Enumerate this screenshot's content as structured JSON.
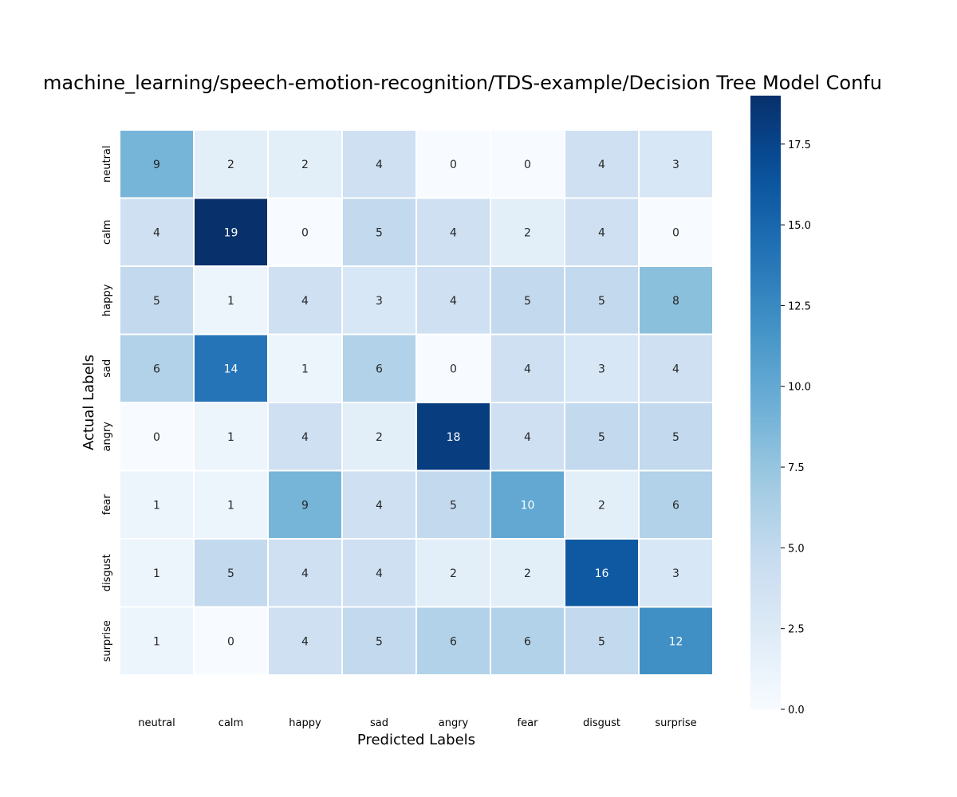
{
  "chart_data": {
    "type": "heatmap",
    "title": "machine_learning/speech-emotion-recognition/TDS-example/Decision Tree Model Confu",
    "xlabel": "Predicted Labels",
    "ylabel": "Actual Labels",
    "x_categories": [
      "neutral",
      "calm",
      "happy",
      "sad",
      "angry",
      "fear",
      "disgust",
      "surprise"
    ],
    "y_categories": [
      "neutral",
      "calm",
      "happy",
      "sad",
      "angry",
      "fear",
      "disgust",
      "surprise"
    ],
    "values": [
      [
        9,
        2,
        2,
        4,
        0,
        0,
        4,
        3
      ],
      [
        4,
        19,
        0,
        5,
        4,
        2,
        4,
        0
      ],
      [
        5,
        1,
        4,
        3,
        4,
        5,
        5,
        8
      ],
      [
        6,
        14,
        1,
        6,
        0,
        4,
        3,
        4
      ],
      [
        0,
        1,
        4,
        2,
        18,
        4,
        5,
        5
      ],
      [
        1,
        1,
        9,
        4,
        5,
        10,
        2,
        6
      ],
      [
        1,
        5,
        4,
        4,
        2,
        2,
        16,
        3
      ],
      [
        1,
        0,
        4,
        5,
        6,
        6,
        5,
        12
      ]
    ],
    "colorscale": "Blues",
    "color_range": [
      0,
      19
    ],
    "colorbar_ticks": [
      "0.0",
      "2.5",
      "5.0",
      "7.5",
      "10.0",
      "12.5",
      "15.0",
      "17.5"
    ],
    "colorbar_tick_values": [
      0,
      2.5,
      5,
      7.5,
      10,
      12.5,
      15,
      17.5
    ]
  }
}
